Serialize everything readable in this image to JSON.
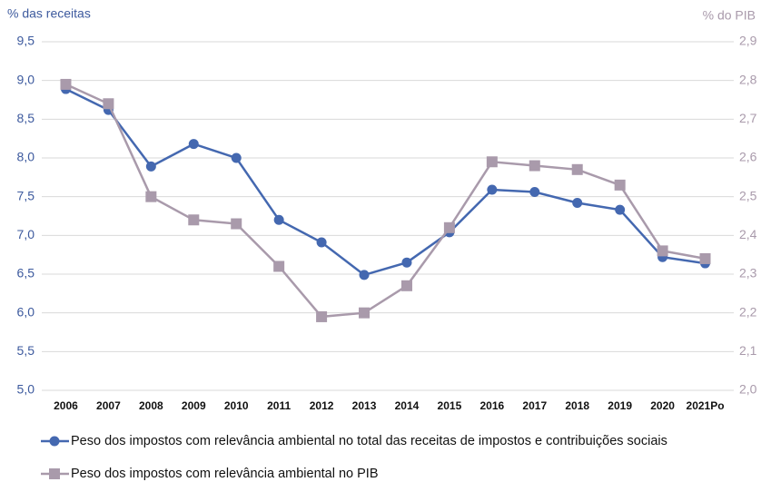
{
  "chart_data": {
    "type": "line",
    "y_label": "% das receitas",
    "y2_label": "% do PIB",
    "categories": [
      "2006",
      "2007",
      "2008",
      "2009",
      "2010",
      "2011",
      "2012",
      "2013",
      "2014",
      "2015",
      "2016",
      "2017",
      "2018",
      "2019",
      "2020",
      "2021Po"
    ],
    "series": [
      {
        "name": "Peso dos impostos com relevância ambiental no total das receitas de impostos e contribuições sociais",
        "color": "#4468b0",
        "marker": "circle",
        "values": [
          8.89,
          8.62,
          7.89,
          8.18,
          8.0,
          7.2,
          6.91,
          6.49,
          6.65,
          7.04,
          7.59,
          7.56,
          7.42,
          7.33,
          6.72,
          6.64
        ]
      },
      {
        "name": "Peso dos impostos com relevância ambiental no PIB",
        "color": "#a99aab",
        "marker": "square",
        "axis": "y2",
        "values": [
          2.79,
          2.74,
          2.5,
          2.44,
          2.43,
          2.32,
          2.19,
          2.2,
          2.27,
          2.42,
          2.59,
          2.58,
          2.57,
          2.53,
          2.36,
          2.34
        ]
      }
    ],
    "ylim": [
      5.0,
      9.5
    ],
    "yticks": [
      {
        "value": 5.0,
        "label": "5,0"
      },
      {
        "value": 5.5,
        "label": "5,5"
      },
      {
        "value": 6.0,
        "label": "6,0"
      },
      {
        "value": 6.5,
        "label": "6,5"
      },
      {
        "value": 7.0,
        "label": "7,0"
      },
      {
        "value": 7.5,
        "label": "7,5"
      },
      {
        "value": 8.0,
        "label": "8,0"
      },
      {
        "value": 8.5,
        "label": "8,5"
      },
      {
        "value": 9.0,
        "label": "9,0"
      },
      {
        "value": 9.5,
        "label": "9,5"
      }
    ],
    "y2lim": [
      2.0,
      2.9
    ],
    "y2ticks": [
      {
        "value": 2.0,
        "label": "2,0"
      },
      {
        "value": 2.1,
        "label": "2,1"
      },
      {
        "value": 2.2,
        "label": "2,2"
      },
      {
        "value": 2.3,
        "label": "2,3"
      },
      {
        "value": 2.4,
        "label": "2,4"
      },
      {
        "value": 2.5,
        "label": "2,5"
      },
      {
        "value": 2.6,
        "label": "2,6"
      },
      {
        "value": 2.7,
        "label": "2,7"
      },
      {
        "value": 2.8,
        "label": "2,8"
      },
      {
        "value": 2.9,
        "label": "2,9"
      }
    ],
    "grid": true,
    "legend": "bottom"
  }
}
